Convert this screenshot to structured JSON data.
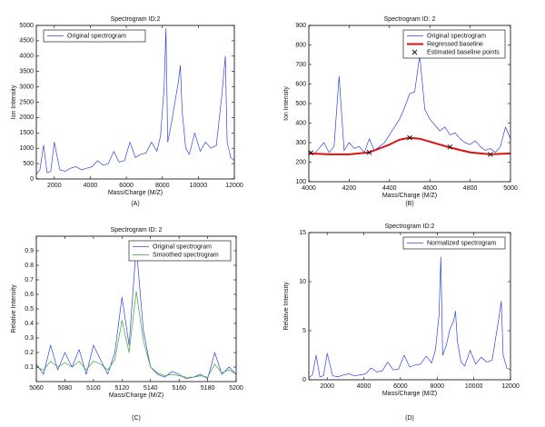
{
  "chart_data": [
    {
      "type": "line",
      "title": "Spectrogram ID:2",
      "caption": "(A)",
      "xlabel": "Mass/Charge (M/Z)",
      "ylabel": "Ion Intensity",
      "xlim": [
        1000,
        12000
      ],
      "ylim": [
        0,
        5000
      ],
      "xticks": [
        2000,
        4000,
        6000,
        8000,
        10000,
        12000
      ],
      "yticks": [
        0,
        500,
        1000,
        1500,
        2000,
        2500,
        3000,
        3500,
        4000,
        4500,
        5000
      ],
      "legend": "upper left",
      "series": [
        {
          "name": "Original spectrogram",
          "color": "#3344dd",
          "x": [
            1000,
            1200,
            1400,
            1600,
            1800,
            2000,
            2300,
            2600,
            2900,
            3200,
            3500,
            3800,
            4100,
            4400,
            4700,
            5000,
            5300,
            5600,
            5900,
            6200,
            6500,
            6800,
            7100,
            7400,
            7700,
            7900,
            8100,
            8200,
            8300,
            8500,
            8700,
            8900,
            9000,
            9100,
            9300,
            9500,
            9800,
            10100,
            10400,
            10700,
            11000,
            11300,
            11500,
            11600,
            11800,
            12000
          ],
          "values": [
            150,
            300,
            1100,
            200,
            250,
            1200,
            300,
            250,
            350,
            400,
            300,
            350,
            400,
            600,
            450,
            500,
            900,
            550,
            600,
            1200,
            700,
            800,
            850,
            1200,
            900,
            1400,
            3000,
            4900,
            1200,
            1800,
            2500,
            3200,
            3700,
            2200,
            1000,
            800,
            1500,
            900,
            1200,
            1000,
            1100,
            2700,
            4000,
            1200,
            700,
            600
          ]
        }
      ]
    },
    {
      "type": "line",
      "title": "Spectrogram ID: 2",
      "caption": "(B)",
      "xlabel": "Mass/Charge (M/Z)",
      "ylabel": "Ion Intensity",
      "xlim": [
        4000,
        5000
      ],
      "ylim": [
        100,
        900
      ],
      "xticks": [
        4000,
        4200,
        4400,
        4600,
        4800,
        5000
      ],
      "yticks": [
        100,
        200,
        300,
        400,
        500,
        600,
        700,
        800,
        900
      ],
      "legend": "upper right",
      "series": [
        {
          "name": "Original spectrogram",
          "color": "#3344dd",
          "x": [
            4000,
            4025,
            4050,
            4075,
            4100,
            4125,
            4150,
            4175,
            4200,
            4225,
            4250,
            4275,
            4300,
            4325,
            4350,
            4375,
            4400,
            4425,
            4450,
            4475,
            4500,
            4525,
            4550,
            4575,
            4600,
            4625,
            4650,
            4675,
            4700,
            4725,
            4750,
            4775,
            4800,
            4825,
            4850,
            4875,
            4900,
            4925,
            4950,
            4975,
            5000
          ],
          "values": [
            260,
            240,
            270,
            300,
            250,
            280,
            640,
            260,
            300,
            270,
            280,
            250,
            320,
            260,
            280,
            300,
            340,
            380,
            420,
            480,
            550,
            560,
            750,
            470,
            420,
            390,
            360,
            380,
            340,
            350,
            320,
            300,
            290,
            310,
            280,
            260,
            270,
            250,
            280,
            380,
            320
          ]
        },
        {
          "name": "Regressed baseline",
          "color": "#dd1111",
          "linewidth": 2,
          "x": [
            4000,
            4100,
            4200,
            4300,
            4400,
            4450,
            4500,
            4550,
            4600,
            4700,
            4800,
            4900,
            5000
          ],
          "values": [
            245,
            240,
            240,
            250,
            290,
            315,
            325,
            320,
            305,
            275,
            250,
            240,
            245
          ]
        },
        {
          "name": "Estimated baseline points",
          "color": "#111111",
          "marker": "x",
          "x": [
            4010,
            4300,
            4500,
            4700,
            4900
          ],
          "values": [
            248,
            250,
            325,
            278,
            240
          ]
        }
      ]
    },
    {
      "type": "line",
      "title": "Spectrogram ID: 2",
      "caption": "(C)",
      "xlabel": "Mass/Charge (M/Z)",
      "ylabel": "Relative Intensity",
      "xlim": [
        5060,
        5200
      ],
      "ylim": [
        0,
        1
      ],
      "xticks": [
        5060,
        5080,
        5100,
        5120,
        5140,
        5160,
        5180,
        5200
      ],
      "yticks": [
        0.1,
        0.2,
        0.3,
        0.4,
        0.5,
        0.6,
        0.7,
        0.8,
        0.9
      ],
      "legend": "upper right",
      "series": [
        {
          "name": "Original spectrogram",
          "color": "#3344dd",
          "x": [
            5060,
            5065,
            5070,
            5075,
            5080,
            5085,
            5090,
            5095,
            5100,
            5105,
            5110,
            5115,
            5120,
            5125,
            5130,
            5135,
            5140,
            5145,
            5150,
            5155,
            5160,
            5165,
            5170,
            5175,
            5180,
            5185,
            5190,
            5195,
            5200
          ],
          "values": [
            0.12,
            0.05,
            0.25,
            0.08,
            0.2,
            0.1,
            0.22,
            0.05,
            0.25,
            0.15,
            0.05,
            0.2,
            0.58,
            0.25,
            0.93,
            0.35,
            0.1,
            0.05,
            0.03,
            0.07,
            0.05,
            0.02,
            0.03,
            0.05,
            0.02,
            0.2,
            0.05,
            0.1,
            0.05
          ]
        },
        {
          "name": "Smoothed spectrogram",
          "color": "#33aa33",
          "x": [
            5060,
            5065,
            5070,
            5075,
            5080,
            5085,
            5090,
            5095,
            5100,
            5105,
            5110,
            5115,
            5120,
            5125,
            5130,
            5135,
            5140,
            5145,
            5150,
            5155,
            5160,
            5165,
            5170,
            5175,
            5180,
            5185,
            5190,
            5195,
            5200
          ],
          "values": [
            0.1,
            0.08,
            0.14,
            0.1,
            0.13,
            0.1,
            0.14,
            0.08,
            0.14,
            0.12,
            0.08,
            0.15,
            0.42,
            0.2,
            0.62,
            0.28,
            0.1,
            0.06,
            0.04,
            0.05,
            0.04,
            0.03,
            0.03,
            0.04,
            0.03,
            0.12,
            0.06,
            0.08,
            0.05
          ]
        }
      ]
    },
    {
      "type": "line",
      "title": "Spectrogram ID:2",
      "caption": "(D)",
      "xlabel": "Mass/Charge (M/Z)",
      "ylabel": "Relative Intensity",
      "xlim": [
        1000,
        12000
      ],
      "ylim": [
        0,
        15
      ],
      "xticks": [
        2000,
        4000,
        6000,
        8000,
        10000,
        12000
      ],
      "yticks": [
        0,
        5,
        10,
        15
      ],
      "legend": "upper right",
      "series": [
        {
          "name": "Normalized spectrogram",
          "color": "#3344dd",
          "x": [
            1000,
            1200,
            1400,
            1600,
            1800,
            2000,
            2300,
            2600,
            2900,
            3200,
            3500,
            3800,
            4100,
            4400,
            4700,
            5000,
            5300,
            5600,
            5900,
            6200,
            6500,
            6800,
            7100,
            7400,
            7700,
            7900,
            8100,
            8200,
            8300,
            8500,
            8700,
            8900,
            9000,
            9100,
            9300,
            9500,
            9800,
            10100,
            10400,
            10700,
            11000,
            11300,
            11500,
            11600,
            11800,
            12000
          ],
          "values": [
            0.2,
            0.5,
            2.5,
            0.3,
            0.4,
            2.7,
            0.4,
            0.3,
            0.5,
            0.6,
            0.4,
            0.5,
            0.6,
            1.2,
            0.8,
            0.9,
            1.8,
            1.0,
            1.1,
            2.5,
            1.3,
            1.5,
            1.6,
            2.4,
            1.7,
            3.0,
            6.5,
            12.5,
            2.5,
            3.5,
            5.2,
            6.0,
            7.0,
            4.0,
            1.8,
            1.4,
            3.0,
            1.6,
            2.3,
            1.8,
            2.0,
            5.5,
            8.0,
            2.5,
            1.2,
            1.0
          ]
        }
      ]
    }
  ]
}
